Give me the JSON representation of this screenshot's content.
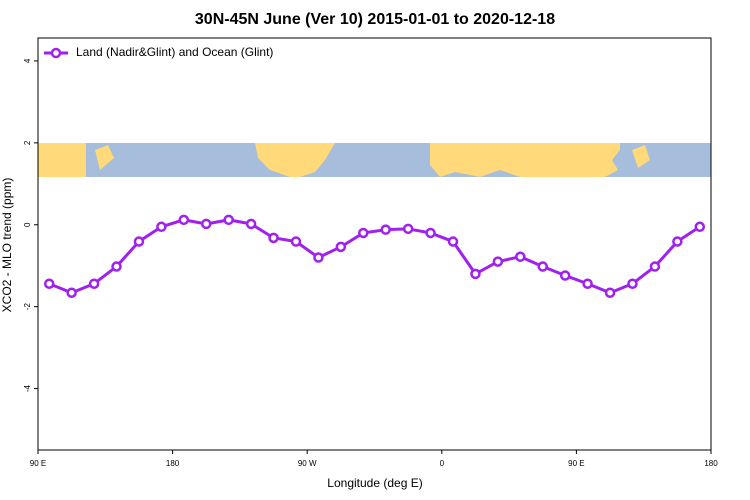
{
  "chart_data": {
    "type": "line",
    "title": "30N-45N June (Ver 10)   2015-01-01 to 2020-12-18",
    "x_label": "Longitude (deg E)",
    "y_label": "XCO2 - MLO trend (ppm)",
    "x": [
      97.5,
      112.5,
      127.5,
      142.5,
      157.5,
      172.5,
      187.5,
      202.5,
      217.5,
      232.5,
      247.5,
      262.5,
      277.5,
      292.5,
      307.5,
      322.5,
      337.5,
      352.5,
      367.5,
      382.5,
      397.5,
      412.5,
      427.5,
      442.5,
      457.5,
      472.5,
      487.5,
      502.5,
      517.5,
      532.5
    ],
    "series": [
      {
        "name": "Land (Nadir&Glint) and Ocean (Glint)",
        "color": "#a020f0",
        "values": [
          -1.44,
          -1.66,
          -1.44,
          -1.02,
          -0.41,
          -0.05,
          0.12,
          0.02,
          0.12,
          0.02,
          -0.32,
          -0.41,
          -0.8,
          -0.54,
          -0.2,
          -0.12,
          -0.1,
          -0.2,
          -0.41,
          -1.2,
          -0.9,
          -0.78,
          -1.02,
          -1.24,
          -1.44,
          -1.66,
          -1.44,
          -1.02,
          -0.41,
          -0.05
        ]
      }
    ],
    "xlim": [
      90,
      540
    ],
    "xticks": [
      {
        "value": 90,
        "label": "90 E"
      },
      {
        "value": 180,
        "label": "180"
      },
      {
        "value": 270,
        "label": "90 W"
      },
      {
        "value": 360,
        "label": "0"
      },
      {
        "value": 450,
        "label": "90 E"
      },
      {
        "value": 540,
        "label": "180"
      }
    ],
    "ylim": [
      -5.5,
      4.56
    ],
    "yticks": [
      -4,
      -2,
      0,
      2,
      4
    ],
    "legend": "top-left"
  }
}
